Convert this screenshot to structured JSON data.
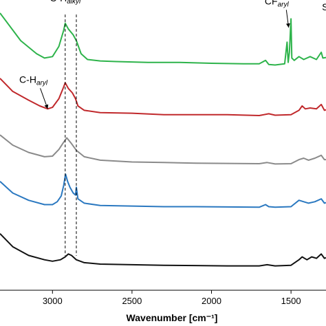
{
  "chart_data": {
    "type": "line",
    "title": "",
    "xlabel": "Wavenumber [cm⁻¹]",
    "ylabel": "",
    "x_reversed": true,
    "xlim": [
      3330,
      1280
    ],
    "ylim": [
      0,
      10
    ],
    "x_ticks": [
      {
        "value": 3000,
        "label": "3000"
      },
      {
        "value": 2500,
        "label": "2500"
      },
      {
        "value": 2000,
        "label": "2000"
      },
      {
        "value": 1500,
        "label": "1500"
      }
    ],
    "reference_lines": [
      2920,
      2850
    ],
    "annotations": [
      {
        "id": "alkyl",
        "main": "C-H",
        "sub": "alkyl",
        "x": 2920,
        "y": 9.95
      },
      {
        "id": "aryl",
        "main": "C-H",
        "sub": "aryl",
        "x": 3120,
        "y": 7.15,
        "arrow_to": {
          "x": 3030,
          "y": 6.25
        }
      },
      {
        "id": "cf",
        "main": "CF",
        "sub": "aryl",
        "x": 1590,
        "y": 9.85,
        "arrow_to": {
          "x": 1515,
          "y": 9.05
        }
      },
      {
        "id": "s",
        "main": "S",
        "sub": "",
        "x": 1285,
        "y": 9.65
      }
    ],
    "series": [
      {
        "color": "#2db34a",
        "points": [
          [
            3330,
            9.55
          ],
          [
            3200,
            8.6
          ],
          [
            3100,
            8.15
          ],
          [
            3050,
            8.0
          ],
          [
            3000,
            8.05
          ],
          [
            2960,
            8.4
          ],
          [
            2930,
            8.95
          ],
          [
            2920,
            9.2
          ],
          [
            2900,
            9.0
          ],
          [
            2870,
            8.8
          ],
          [
            2850,
            8.6
          ],
          [
            2820,
            8.15
          ],
          [
            2780,
            7.95
          ],
          [
            2700,
            7.9
          ],
          [
            2600,
            7.88
          ],
          [
            2400,
            7.85
          ],
          [
            2200,
            7.85
          ],
          [
            2000,
            7.82
          ],
          [
            1800,
            7.8
          ],
          [
            1700,
            7.8
          ],
          [
            1660,
            7.92
          ],
          [
            1640,
            7.78
          ],
          [
            1600,
            7.76
          ],
          [
            1540,
            7.8
          ],
          [
            1525,
            8.55
          ],
          [
            1518,
            7.85
          ],
          [
            1510,
            8.2
          ],
          [
            1500,
            9.35
          ],
          [
            1495,
            8.0
          ],
          [
            1480,
            7.92
          ],
          [
            1450,
            8.05
          ],
          [
            1420,
            7.95
          ],
          [
            1380,
            8.05
          ],
          [
            1340,
            7.95
          ],
          [
            1310,
            8.2
          ],
          [
            1300,
            8.0
          ],
          [
            1280,
            8.02
          ]
        ]
      },
      {
        "color": "#c0282b",
        "points": [
          [
            3330,
            7.3
          ],
          [
            3250,
            6.85
          ],
          [
            3150,
            6.55
          ],
          [
            3080,
            6.35
          ],
          [
            3030,
            6.25
          ],
          [
            3000,
            6.3
          ],
          [
            2960,
            6.6
          ],
          [
            2930,
            7.0
          ],
          [
            2920,
            7.15
          ],
          [
            2900,
            6.95
          ],
          [
            2875,
            6.8
          ],
          [
            2855,
            6.6
          ],
          [
            2840,
            6.35
          ],
          [
            2800,
            6.2
          ],
          [
            2700,
            6.12
          ],
          [
            2500,
            6.1
          ],
          [
            2300,
            6.05
          ],
          [
            2100,
            6.05
          ],
          [
            1900,
            6.05
          ],
          [
            1700,
            6.02
          ],
          [
            1640,
            6.08
          ],
          [
            1600,
            6.03
          ],
          [
            1500,
            6.05
          ],
          [
            1450,
            6.2
          ],
          [
            1430,
            6.35
          ],
          [
            1410,
            6.25
          ],
          [
            1380,
            6.28
          ],
          [
            1340,
            6.25
          ],
          [
            1310,
            6.4
          ],
          [
            1290,
            6.2
          ],
          [
            1280,
            6.22
          ]
        ]
      },
      {
        "color": "#8a8a8a",
        "points": [
          [
            3330,
            5.35
          ],
          [
            3250,
            5.0
          ],
          [
            3150,
            4.75
          ],
          [
            3050,
            4.6
          ],
          [
            3000,
            4.62
          ],
          [
            2960,
            4.85
          ],
          [
            2930,
            5.1
          ],
          [
            2910,
            5.25
          ],
          [
            2880,
            5.05
          ],
          [
            2850,
            4.82
          ],
          [
            2800,
            4.6
          ],
          [
            2700,
            4.48
          ],
          [
            2500,
            4.42
          ],
          [
            2300,
            4.4
          ],
          [
            2100,
            4.38
          ],
          [
            1900,
            4.37
          ],
          [
            1700,
            4.36
          ],
          [
            1650,
            4.4
          ],
          [
            1600,
            4.35
          ],
          [
            1500,
            4.36
          ],
          [
            1450,
            4.5
          ],
          [
            1420,
            4.55
          ],
          [
            1390,
            4.48
          ],
          [
            1350,
            4.55
          ],
          [
            1310,
            4.65
          ],
          [
            1290,
            4.5
          ],
          [
            1280,
            4.5
          ]
        ]
      },
      {
        "color": "#2a78c0",
        "points": [
          [
            3330,
            3.75
          ],
          [
            3250,
            3.35
          ],
          [
            3150,
            3.1
          ],
          [
            3050,
            2.95
          ],
          [
            3000,
            2.95
          ],
          [
            2970,
            3.05
          ],
          [
            2945,
            3.25
          ],
          [
            2930,
            3.6
          ],
          [
            2918,
            4.0
          ],
          [
            2905,
            3.75
          ],
          [
            2890,
            3.55
          ],
          [
            2870,
            3.35
          ],
          [
            2855,
            3.28
          ],
          [
            2850,
            3.55
          ],
          [
            2840,
            3.15
          ],
          [
            2800,
            3.0
          ],
          [
            2700,
            2.92
          ],
          [
            2500,
            2.9
          ],
          [
            2300,
            2.88
          ],
          [
            2100,
            2.88
          ],
          [
            1900,
            2.87
          ],
          [
            1700,
            2.86
          ],
          [
            1660,
            2.95
          ],
          [
            1640,
            2.88
          ],
          [
            1600,
            2.86
          ],
          [
            1500,
            2.88
          ],
          [
            1450,
            3.1
          ],
          [
            1420,
            3.05
          ],
          [
            1390,
            3.0
          ],
          [
            1350,
            3.05
          ],
          [
            1310,
            3.15
          ],
          [
            1290,
            3.0
          ],
          [
            1280,
            3.02
          ]
        ]
      },
      {
        "color": "#111111",
        "points": [
          [
            3330,
            1.95
          ],
          [
            3250,
            1.5
          ],
          [
            3150,
            1.2
          ],
          [
            3050,
            1.05
          ],
          [
            3000,
            1.0
          ],
          [
            2950,
            1.05
          ],
          [
            2920,
            1.15
          ],
          [
            2900,
            1.25
          ],
          [
            2880,
            1.2
          ],
          [
            2850,
            1.05
          ],
          [
            2800,
            0.95
          ],
          [
            2700,
            0.9
          ],
          [
            2500,
            0.88
          ],
          [
            2300,
            0.86
          ],
          [
            2100,
            0.85
          ],
          [
            1900,
            0.84
          ],
          [
            1700,
            0.84
          ],
          [
            1650,
            0.88
          ],
          [
            1600,
            0.84
          ],
          [
            1500,
            0.86
          ],
          [
            1450,
            1.05
          ],
          [
            1430,
            1.15
          ],
          [
            1400,
            1.05
          ],
          [
            1370,
            1.15
          ],
          [
            1340,
            1.1
          ],
          [
            1310,
            1.25
          ],
          [
            1290,
            1.1
          ],
          [
            1280,
            1.12
          ]
        ]
      }
    ]
  }
}
